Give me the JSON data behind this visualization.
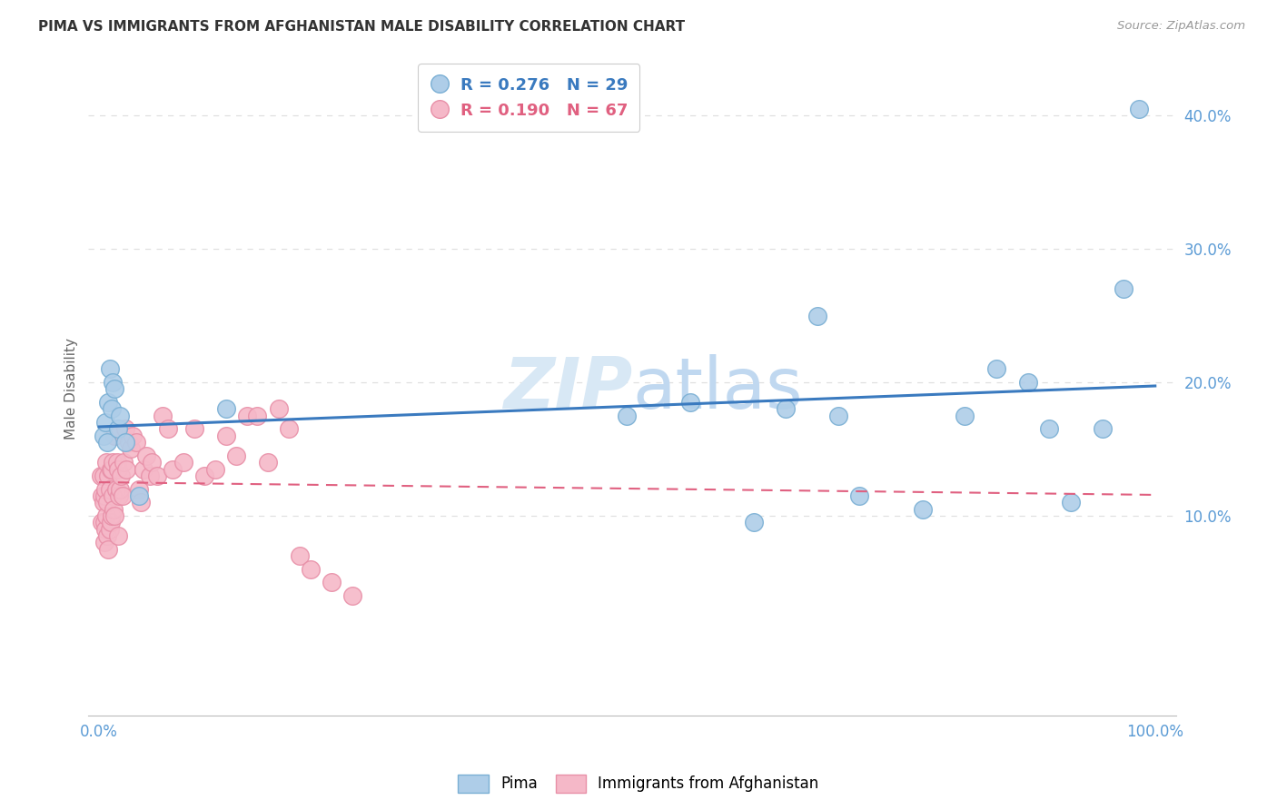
{
  "title": "PIMA VS IMMIGRANTS FROM AFGHANISTAN MALE DISABILITY CORRELATION CHART",
  "source": "Source: ZipAtlas.com",
  "ylabel": "Male Disability",
  "xlim": [
    -0.01,
    1.02
  ],
  "ylim": [
    -0.05,
    0.44
  ],
  "xticks": [
    0.0,
    0.1,
    0.2,
    0.3,
    0.4,
    0.5,
    0.6,
    0.7,
    0.8,
    0.9,
    1.0
  ],
  "yticks": [
    0.1,
    0.2,
    0.3,
    0.4
  ],
  "ytick_labels": [
    "10.0%",
    "20.0%",
    "30.0%",
    "40.0%"
  ],
  "xtick_labels": [
    "0.0%",
    "",
    "",
    "",
    "",
    "",
    "",
    "",
    "",
    "",
    "100.0%"
  ],
  "background_color": "#ffffff",
  "grid_color": "#e0e0e0",
  "pima_color": "#aecde8",
  "pima_edge_color": "#7aafd4",
  "afghanistan_color": "#f5b8c8",
  "afghanistan_edge_color": "#e890a8",
  "pima_R": 0.276,
  "pima_N": 29,
  "afghanistan_R": 0.19,
  "afghanistan_N": 67,
  "pima_line_color": "#3a7abf",
  "afghanistan_line_color": "#e06080",
  "watermark_color": "#d8e8f5",
  "pima_x": [
    0.004,
    0.006,
    0.008,
    0.009,
    0.01,
    0.012,
    0.013,
    0.015,
    0.018,
    0.02,
    0.025,
    0.038,
    0.12,
    0.5,
    0.56,
    0.62,
    0.65,
    0.68,
    0.7,
    0.72,
    0.78,
    0.82,
    0.85,
    0.88,
    0.9,
    0.92,
    0.95,
    0.97,
    0.985
  ],
  "pima_y": [
    0.16,
    0.17,
    0.155,
    0.185,
    0.21,
    0.18,
    0.2,
    0.195,
    0.165,
    0.175,
    0.155,
    0.115,
    0.18,
    0.175,
    0.185,
    0.095,
    0.18,
    0.25,
    0.175,
    0.115,
    0.105,
    0.175,
    0.21,
    0.2,
    0.165,
    0.11,
    0.165,
    0.27,
    0.405
  ],
  "afghanistan_x": [
    0.002,
    0.003,
    0.003,
    0.004,
    0.004,
    0.005,
    0.005,
    0.005,
    0.006,
    0.006,
    0.007,
    0.007,
    0.008,
    0.008,
    0.009,
    0.009,
    0.01,
    0.01,
    0.011,
    0.011,
    0.012,
    0.012,
    0.013,
    0.013,
    0.014,
    0.015,
    0.015,
    0.016,
    0.017,
    0.018,
    0.018,
    0.019,
    0.02,
    0.021,
    0.022,
    0.023,
    0.025,
    0.026,
    0.028,
    0.03,
    0.032,
    0.035,
    0.038,
    0.04,
    0.042,
    0.045,
    0.048,
    0.05,
    0.055,
    0.06,
    0.065,
    0.07,
    0.08,
    0.09,
    0.1,
    0.11,
    0.12,
    0.13,
    0.14,
    0.15,
    0.16,
    0.17,
    0.18,
    0.19,
    0.2,
    0.22,
    0.24
  ],
  "afghanistan_y": [
    0.13,
    0.115,
    0.095,
    0.11,
    0.13,
    0.08,
    0.095,
    0.115,
    0.09,
    0.12,
    0.1,
    0.14,
    0.085,
    0.11,
    0.075,
    0.13,
    0.09,
    0.12,
    0.135,
    0.095,
    0.1,
    0.135,
    0.115,
    0.14,
    0.105,
    0.1,
    0.16,
    0.12,
    0.14,
    0.085,
    0.135,
    0.115,
    0.12,
    0.13,
    0.115,
    0.14,
    0.165,
    0.135,
    0.155,
    0.15,
    0.16,
    0.155,
    0.12,
    0.11,
    0.135,
    0.145,
    0.13,
    0.14,
    0.13,
    0.175,
    0.165,
    0.135,
    0.14,
    0.165,
    0.13,
    0.135,
    0.16,
    0.145,
    0.175,
    0.175,
    0.14,
    0.18,
    0.165,
    0.07,
    0.06,
    0.05,
    0.04
  ]
}
